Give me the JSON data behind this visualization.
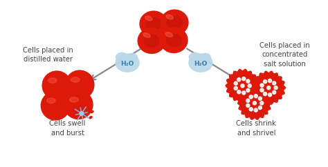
{
  "bg_color": "#ffffff",
  "cell_red": "#dd1a0a",
  "cell_red_mid": "#c51208",
  "cell_highlight": "#f05040",
  "h2o_bg": "#b8d8ea",
  "h2o_text_color": "#3a7aaa",
  "arrow_color": "#888888",
  "text_color": "#444444",
  "left_label": "Cells placed in\ndistilled water",
  "right_label": "Cells placed in\nconcentrated\nsalt solution",
  "bottom_left_label": "Cells swell\nand burst",
  "bottom_right_label": "Cells shrink\nand shrivel",
  "h2o_label": "H₂O",
  "figsize": [
    4.74,
    2.42
  ],
  "dpi": 100
}
